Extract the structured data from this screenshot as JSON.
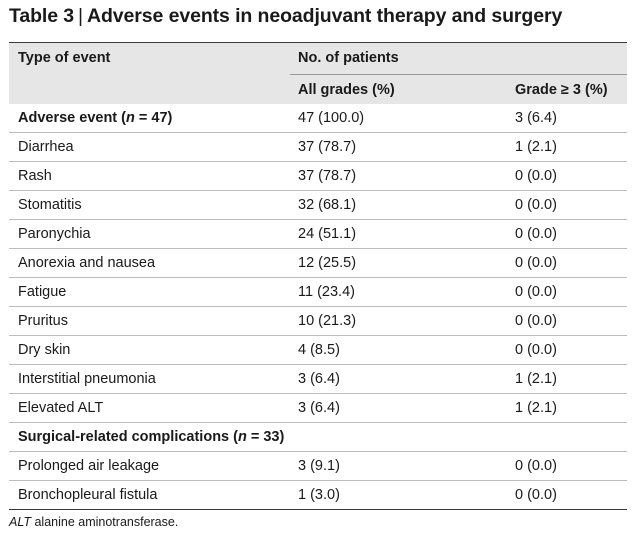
{
  "title": {
    "label": "Table 3",
    "separator": "|",
    "text": "Adverse events in neoadjuvant therapy and surgery"
  },
  "header": {
    "type_of_event": "Type of event",
    "no_of_patients": "No. of patients",
    "all_grades": "All grades (%)",
    "grade3": "Grade ≥ 3 (%)"
  },
  "rows": [
    {
      "event": "Adverse event (",
      "n_var": "n",
      "n_val": " = 47)",
      "all": "47 (100.0)",
      "g3": "3 (6.4)"
    },
    {
      "event": "Diarrhea",
      "all": "37 (78.7)",
      "g3": "1 (2.1)"
    },
    {
      "event": "Rash",
      "all": "37 (78.7)",
      "g3": "0 (0.0)"
    },
    {
      "event": "Stomatitis",
      "all": "32 (68.1)",
      "g3": "0 (0.0)"
    },
    {
      "event": "Paronychia",
      "all": "24 (51.1)",
      "g3": "0 (0.0)"
    },
    {
      "event": "Anorexia and nausea",
      "all": "12 (25.5)",
      "g3": "0 (0.0)"
    },
    {
      "event": "Fatigue",
      "all": "11 (23.4)",
      "g3": "0 (0.0)"
    },
    {
      "event": "Pruritus",
      "all": "10 (21.3)",
      "g3": "0 (0.0)"
    },
    {
      "event": "Dry skin",
      "all": "4 (8.5)",
      "g3": "0 (0.0)"
    },
    {
      "event": "Interstitial pneumonia",
      "all": "3 (6.4)",
      "g3": "1 (2.1)"
    },
    {
      "event": "Elevated ALT",
      "all": "3 (6.4)",
      "g3": "1 (2.1)"
    },
    {
      "event": "Surgical-related complications (",
      "n_var": "n",
      "n_val": " = 33)",
      "all": "",
      "g3": ""
    },
    {
      "event": "Prolonged air leakage",
      "all": "3 (9.1)",
      "g3": "0 (0.0)"
    },
    {
      "event": "Bronchopleural fistula",
      "all": "1 (3.0)",
      "g3": "0 (0.0)"
    }
  ],
  "footnote": {
    "abbr": "ALT",
    "text": " alanine aminotransferase."
  }
}
